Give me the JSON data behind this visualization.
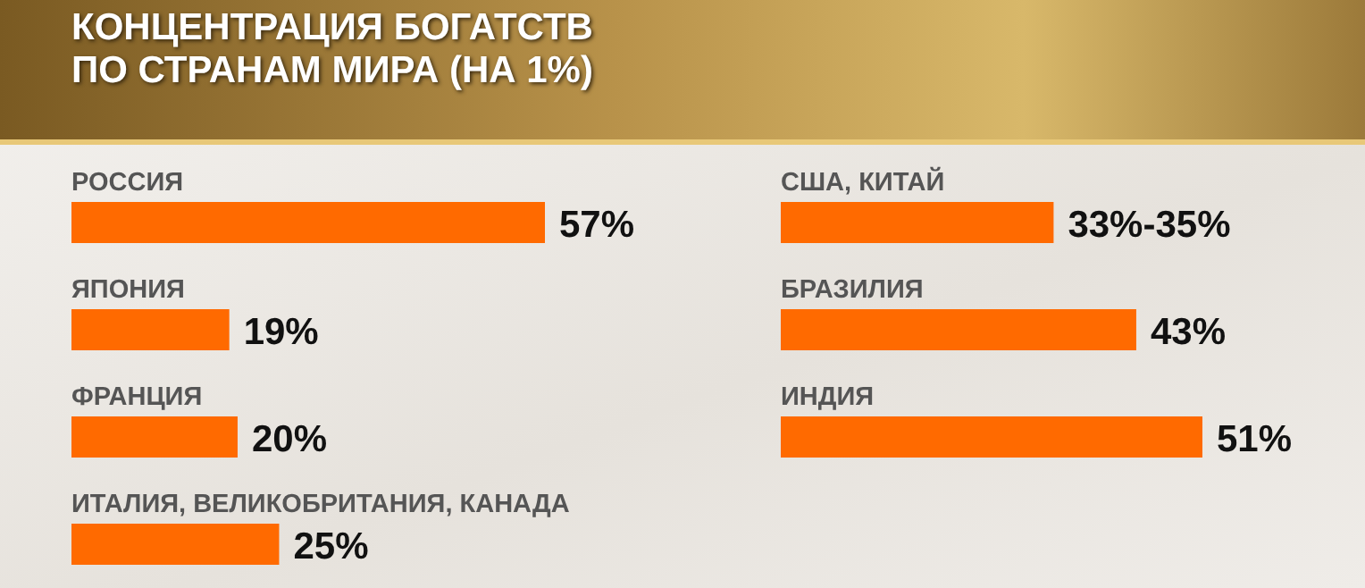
{
  "chart_data": [
    {
      "type": "bar",
      "title": "КОНЦЕНТРАЦИЯ БОГАТСТВ\nПО СТРАНАМ МИРА (НА 1%)",
      "orientation": "horizontal",
      "categories": [
        "РОССИЯ",
        "ЯПОНИЯ",
        "ФРАНЦИЯ",
        "ИТАЛИЯ, ВЕЛИКОБРИТАНИЯ, КАНАДА"
      ],
      "values": [
        57,
        19,
        20,
        25
      ],
      "value_labels": [
        "57%",
        "19%",
        "20%",
        "25%"
      ],
      "color": "#ff6a00",
      "tick_labels": "y"
    },
    {
      "type": "bar",
      "orientation": "horizontal",
      "categories": [
        "США, КИТАЙ",
        "БРАЗИЛИЯ",
        "ИНДИЯ"
      ],
      "values": [
        33,
        43,
        51
      ],
      "value_labels": [
        "33%-35%",
        "43%",
        "51%"
      ],
      "color": "#ff6a00",
      "tick_labels": "y"
    }
  ]
}
